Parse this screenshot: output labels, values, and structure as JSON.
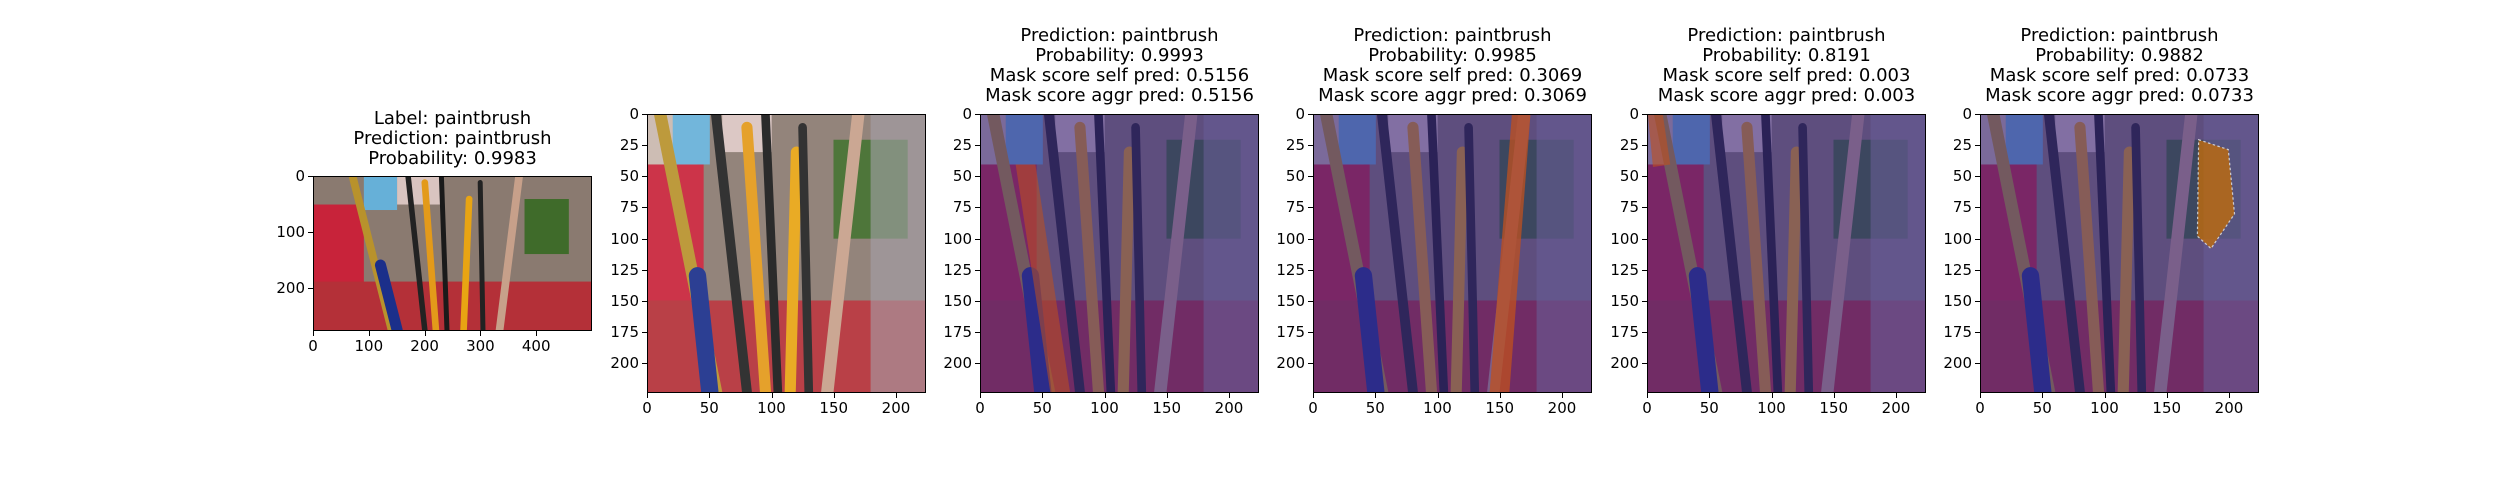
{
  "panels": [
    {
      "title_lines": [
        "Label: paintbrush",
        "Prediction: paintbrush",
        "Probability: 0.9983"
      ],
      "x_ticks": [
        "0",
        "100",
        "200",
        "300",
        "400"
      ],
      "y_ticks": [
        "0",
        "100",
        "200"
      ],
      "image": "original",
      "overlay": null
    },
    {
      "title_lines": [],
      "x_ticks": [
        "0",
        "50",
        "100",
        "150",
        "200"
      ],
      "y_ticks": [
        "0",
        "25",
        "50",
        "75",
        "100",
        "125",
        "150",
        "175",
        "200"
      ],
      "image": "resized",
      "overlay": null
    },
    {
      "title_lines": [
        "Prediction: paintbrush",
        "Probability: 0.9993",
        "Mask score self pred: 0.5156",
        "Mask score aggr pred: 0.5156"
      ],
      "x_ticks": [
        "0",
        "50",
        "100",
        "150",
        "200"
      ],
      "y_ticks": [
        "0",
        "25",
        "50",
        "75",
        "100",
        "125",
        "150",
        "175",
        "200"
      ],
      "image": "masked",
      "overlay": "left-brush"
    },
    {
      "title_lines": [
        "Prediction: paintbrush",
        "Probability: 0.9985",
        "Mask score self pred: 0.3069",
        "Mask score aggr pred: 0.3069"
      ],
      "x_ticks": [
        "0",
        "50",
        "100",
        "150",
        "200"
      ],
      "y_ticks": [
        "0",
        "25",
        "50",
        "75",
        "100",
        "125",
        "150",
        "175",
        "200"
      ],
      "image": "masked",
      "overlay": "right-brush"
    },
    {
      "title_lines": [
        "Prediction: paintbrush",
        "Probability: 0.8191",
        "Mask score self pred: 0.003",
        "Mask score aggr pred: 0.003"
      ],
      "x_ticks": [
        "0",
        "50",
        "100",
        "150",
        "200"
      ],
      "y_ticks": [
        "0",
        "25",
        "50",
        "75",
        "100",
        "125",
        "150",
        "175",
        "200"
      ],
      "image": "masked",
      "overlay": "corner"
    },
    {
      "title_lines": [
        "Prediction: paintbrush",
        "Probability: 0.9882",
        "Mask score self pred: 0.0733",
        "Mask score aggr pred: 0.0733"
      ],
      "x_ticks": [
        "0",
        "50",
        "100",
        "150",
        "200"
      ],
      "y_ticks": [
        "0",
        "25",
        "50",
        "75",
        "100",
        "125",
        "150",
        "175",
        "200"
      ],
      "image": "masked",
      "overlay": "box"
    }
  ],
  "colors": {
    "mask_tint": "#3a2a8a",
    "highlight": "#c0501e"
  }
}
